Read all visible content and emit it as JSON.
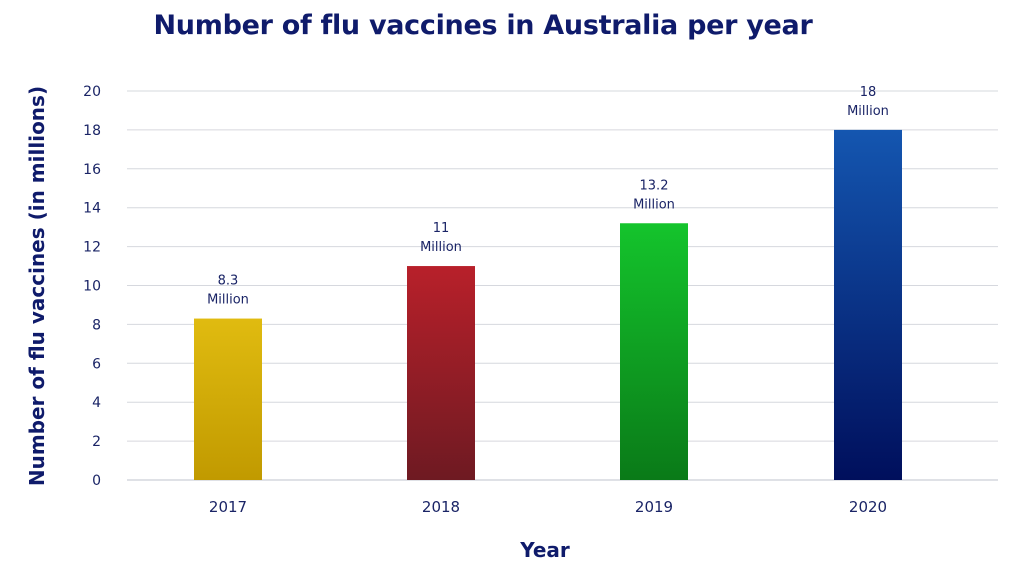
{
  "chart_data": {
    "type": "bar",
    "title": "Number of flu vaccines in Australia per year",
    "xlabel": "Year",
    "ylabel": "Number of flu vaccines (in millions)",
    "categories": [
      "2017",
      "2018",
      "2019",
      "2020"
    ],
    "values": [
      8.3,
      11,
      13.2,
      18
    ],
    "data_labels": [
      [
        "8.3",
        "Million"
      ],
      [
        "11",
        "Million"
      ],
      [
        "13.2",
        "Million"
      ],
      [
        "18",
        "Million"
      ]
    ],
    "yticks": [
      "0",
      "2",
      "4",
      "6",
      "8",
      "10",
      "12",
      "14",
      "16",
      "18",
      "20"
    ],
    "ylim": [
      0,
      20
    ],
    "grid": true,
    "legend": "none",
    "bar_colors": [
      [
        "#e0bb10",
        "#c19a00"
      ],
      [
        "#b8202a",
        "#6e1a22"
      ],
      [
        "#14c42c",
        "#0a7a18"
      ],
      [
        "#1456b0",
        "#000f5c"
      ]
    ]
  }
}
